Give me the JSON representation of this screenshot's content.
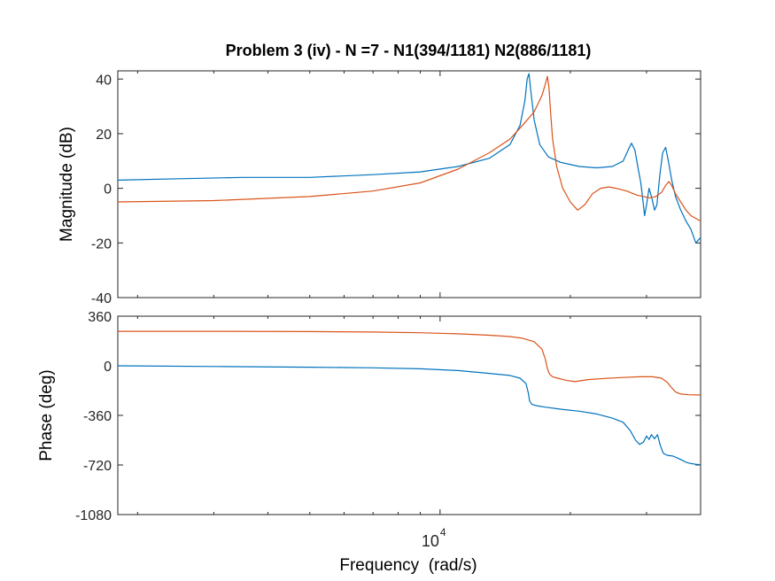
{
  "chart_data": {
    "type": "line",
    "title": "Problem 3 (iv) - N =7 - N1(394/1181) N2(886/1181)",
    "xlabel": "Frequency  (rad/s)",
    "x_scale": "log",
    "xlim": [
      1800,
      40000
    ],
    "x_ticks": [
      {
        "value": 10000,
        "base": "10",
        "exponent": "4"
      }
    ],
    "colors": {
      "series_1": "#0072BD",
      "series_2": "#D95319"
    },
    "panels": [
      {
        "ylabel": "Magnitude (dB)",
        "ylim": [
          -40,
          43
        ],
        "y_ticks": [
          {
            "value": 40,
            "label": "40"
          },
          {
            "value": 20,
            "label": "20"
          },
          {
            "value": 0,
            "label": "0"
          },
          {
            "value": -20,
            "label": "-20"
          },
          {
            "value": -40,
            "label": "-40"
          }
        ],
        "series": [
          {
            "color": "#0072BD",
            "x": [
              1800,
              2500,
              3500,
              5000,
              7000,
              9000,
              11000,
              13000,
              14500,
              15300,
              15700,
              15900,
              16050,
              16200,
              16500,
              17000,
              17800,
              19000,
              21000,
              23000,
              25000,
              26500,
              27200,
              27700,
              28200,
              28700,
              29100,
              29400,
              29700,
              30000,
              30400,
              30800,
              31300,
              31700,
              32200,
              32700,
              33200,
              33700,
              34300,
              35000,
              36000,
              37000,
              38000,
              39000,
              40000
            ],
            "y": [
              3,
              3.5,
              4,
              4,
              5,
              6,
              8,
              11,
              16,
              23,
              32,
              40,
              42,
              36,
              25,
              16,
              11.5,
              9.5,
              8,
              7.5,
              8,
              10,
              14,
              16.5,
              14,
              7,
              2,
              -4,
              -10,
              -6,
              0,
              -3,
              -8,
              -6,
              5,
              13,
              15,
              10,
              3,
              -3,
              -8,
              -12,
              -15,
              -20,
              -18
            ]
          },
          {
            "color": "#D95319",
            "x": [
              1800,
              3000,
              5000,
              7000,
              9000,
              11000,
              13000,
              14500,
              15500,
              16500,
              17200,
              17500,
              17700,
              17850,
              18000,
              18200,
              18600,
              19200,
              20000,
              20800,
              21600,
              22500,
              23500,
              24500,
              25500,
              27000,
              28500,
              29500,
              30500,
              31500,
              32500,
              33200,
              33800,
              34300,
              35000,
              36000,
              37000,
              38000,
              40000
            ],
            "y": [
              -5,
              -4.5,
              -3,
              -1,
              2,
              7,
              13,
              18,
              23,
              28,
              34,
              38,
              41,
              37,
              28,
              18,
              8,
              0,
              -5,
              -8,
              -6,
              -2,
              0,
              0.5,
              0,
              -1,
              -2.5,
              -3,
              -3.5,
              -3,
              -1.5,
              1,
              2.5,
              1,
              -2,
              -5,
              -8,
              -10,
              -12
            ]
          }
        ]
      },
      {
        "ylabel": "Phase (deg)",
        "ylim": [
          -1080,
          360
        ],
        "y_ticks": [
          {
            "value": 360,
            "label": "360"
          },
          {
            "value": 0,
            "label": "0"
          },
          {
            "value": -360,
            "label": "-360"
          },
          {
            "value": -720,
            "label": "-720"
          },
          {
            "value": -1080,
            "label": "-1080"
          }
        ],
        "series": [
          {
            "color": "#0072BD",
            "x": [
              1800,
              3000,
              5000,
              7000,
              9000,
              11000,
              13000,
              14500,
              15300,
              15800,
              16000,
              16100,
              16300,
              16700,
              17500,
              19000,
              21000,
              23000,
              25000,
              26500,
              27500,
              28300,
              28900,
              29500,
              30000,
              30400,
              30800,
              31300,
              31800,
              32300,
              32800,
              33500,
              34500,
              36000,
              37000,
              38000,
              39000,
              40000
            ],
            "y": [
              0,
              -5,
              -10,
              -15,
              -22,
              -35,
              -55,
              -70,
              -90,
              -130,
              -200,
              -255,
              -280,
              -290,
              -300,
              -315,
              -330,
              -350,
              -380,
              -410,
              -470,
              -540,
              -570,
              -555,
              -510,
              -535,
              -500,
              -530,
              -500,
              -580,
              -635,
              -650,
              -655,
              -680,
              -700,
              -710,
              -715,
              -718
            ]
          },
          {
            "color": "#D95319",
            "x": [
              1800,
              3000,
              5000,
              7000,
              9000,
              11000,
              13000,
              14500,
              15500,
              16500,
              17200,
              17500,
              17700,
              17900,
              18200,
              18700,
              19500,
              20500,
              22000,
              24000,
              26500,
              29000,
              31000,
              32500,
              33500,
              34300,
              35000,
              36000,
              37500,
              40000
            ],
            "y": [
              250,
              250,
              248,
              245,
              240,
              232,
              222,
              212,
              200,
              175,
              120,
              50,
              -20,
              -60,
              -80,
              -90,
              -105,
              -115,
              -100,
              -92,
              -85,
              -80,
              -80,
              -90,
              -120,
              -160,
              -190,
              -205,
              -210,
              -212
            ]
          }
        ]
      }
    ]
  }
}
